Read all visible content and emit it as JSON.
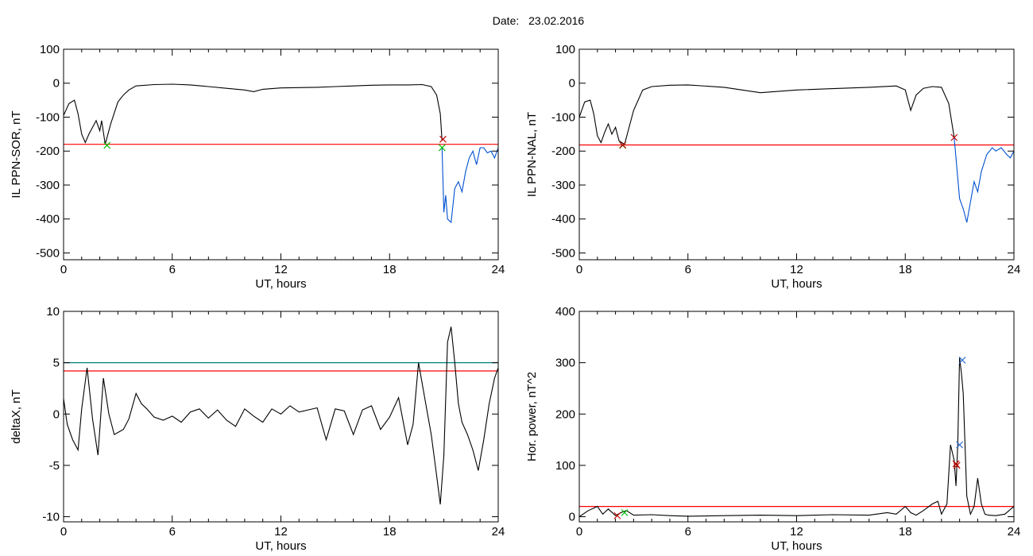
{
  "date_label": "Date:",
  "date_value": "23.02.2016",
  "colors": {
    "trace": "#000000",
    "threshold": "#ff0000",
    "threshold2": "#008080",
    "highlight": "#0050d0",
    "marker_red": "#c00000",
    "marker_green": "#00c000",
    "marker_blue": "#3070d0"
  },
  "chart_data": [
    {
      "type": "line",
      "id": "sor",
      "xlabel": "UT, hours",
      "ylabel": "IL PPN-SOR, nT",
      "xlim": [
        0,
        24
      ],
      "ylim": [
        -520,
        100
      ],
      "xticks": [
        0,
        6,
        12,
        18,
        24
      ],
      "yticks": [
        100,
        0,
        -100,
        -200,
        -300,
        -400,
        -500
      ],
      "series": [
        {
          "color": "black",
          "x": [
            0,
            0.3,
            0.6,
            0.8,
            1.0,
            1.2,
            1.4,
            1.6,
            1.8,
            2.0,
            2.1,
            2.3,
            2.6,
            3.0,
            3.3,
            3.6,
            4.0,
            5,
            6,
            7,
            8,
            9,
            10,
            10.5,
            11,
            12,
            13,
            14,
            15,
            16,
            17,
            18,
            19,
            19.8,
            20.3,
            20.6,
            20.8,
            20.9
          ],
          "y": [
            -95,
            -60,
            -50,
            -90,
            -150,
            -175,
            -150,
            -130,
            -110,
            -140,
            -110,
            -180,
            -120,
            -55,
            -35,
            -20,
            -8,
            -4,
            -3,
            -5,
            -10,
            -15,
            -20,
            -25,
            -18,
            -14,
            -13,
            -12,
            -10,
            -8,
            -6,
            -5,
            -5,
            -4,
            -10,
            -35,
            -90,
            -170
          ]
        },
        {
          "color": "blue",
          "x": [
            20.9,
            21.0,
            21.1,
            21.2,
            21.4,
            21.6,
            21.8,
            22.0,
            22.2,
            22.4,
            22.6,
            22.8,
            23.0,
            23.2,
            23.4,
            23.6,
            23.8,
            24
          ],
          "y": [
            -190,
            -380,
            -330,
            -400,
            -410,
            -310,
            -290,
            -320,
            -260,
            -220,
            -200,
            -240,
            -190,
            -190,
            -205,
            -200,
            -220,
            -190
          ]
        }
      ],
      "threshold": -180,
      "markers": [
        {
          "x": 2.4,
          "y": -183,
          "color": "green"
        },
        {
          "x": 20.95,
          "y": -165,
          "color": "red"
        },
        {
          "x": 20.9,
          "y": -190,
          "color": "green"
        }
      ]
    },
    {
      "type": "line",
      "id": "nal",
      "xlabel": "UT, hours",
      "ylabel": "IL PPN-NAL, nT",
      "xlim": [
        0,
        24
      ],
      "ylim": [
        -520,
        100
      ],
      "xticks": [
        0,
        6,
        12,
        18,
        24
      ],
      "yticks": [
        100,
        0,
        -100,
        -200,
        -300,
        -400,
        -500
      ],
      "series": [
        {
          "color": "black",
          "x": [
            0,
            0.3,
            0.6,
            0.8,
            1.0,
            1.2,
            1.4,
            1.6,
            1.8,
            2.0,
            2.2,
            2.5,
            3.0,
            3.5,
            4,
            5,
            6,
            8,
            10,
            12,
            14,
            16,
            17.5,
            18,
            18.3,
            18.6,
            19,
            19.5,
            20,
            20.4,
            20.7
          ],
          "y": [
            -100,
            -55,
            -50,
            -90,
            -155,
            -175,
            -145,
            -120,
            -150,
            -130,
            -170,
            -180,
            -80,
            -20,
            -10,
            -6,
            -5,
            -12,
            -28,
            -20,
            -16,
            -12,
            -8,
            -20,
            -80,
            -35,
            -15,
            -10,
            -12,
            -60,
            -160
          ]
        },
        {
          "color": "blue",
          "x": [
            20.7,
            21.0,
            21.2,
            21.4,
            21.6,
            21.8,
            22.0,
            22.2,
            22.5,
            22.8,
            23.0,
            23.3,
            23.6,
            23.8,
            24
          ],
          "y": [
            -160,
            -340,
            -370,
            -410,
            -350,
            -290,
            -320,
            -260,
            -210,
            -190,
            -200,
            -190,
            -210,
            -220,
            -200
          ]
        }
      ],
      "threshold": -182,
      "markers": [
        {
          "x": 2.4,
          "y": -183,
          "color": "green"
        },
        {
          "x": 2.4,
          "y": -182,
          "color": "red"
        },
        {
          "x": 20.7,
          "y": -160,
          "color": "red"
        }
      ]
    },
    {
      "type": "line",
      "id": "deltax",
      "xlabel": "UT, hours",
      "ylabel": "deltaX, nT",
      "xlim": [
        0,
        24
      ],
      "ylim": [
        -10.5,
        10
      ],
      "xticks": [
        0,
        6,
        12,
        18,
        24
      ],
      "yticks": [
        10,
        5,
        0,
        -5,
        -10
      ],
      "series": [
        {
          "color": "black",
          "x": [
            0,
            0.2,
            0.5,
            0.8,
            1.0,
            1.3,
            1.6,
            1.9,
            2.2,
            2.5,
            2.8,
            3.0,
            3.3,
            3.6,
            4.0,
            4.3,
            4.6,
            5.0,
            5.5,
            6,
            6.5,
            7,
            7.5,
            8,
            8.5,
            9,
            9.5,
            10,
            10.5,
            11,
            11.5,
            12,
            12.5,
            13,
            13.5,
            14,
            14.5,
            15,
            15.5,
            16,
            16.5,
            17,
            17.5,
            18,
            18.5,
            19,
            19.3,
            19.6,
            20,
            20.3,
            20.6,
            20.8,
            21.0,
            21.2,
            21.4,
            21.6,
            21.8,
            22,
            22.3,
            22.6,
            22.9,
            23.2,
            23.5,
            23.8,
            24
          ],
          "y": [
            1.5,
            -1.0,
            -2.5,
            -3.5,
            0.5,
            4.5,
            -0.5,
            -4.0,
            3.5,
            0.0,
            -2.0,
            -1.8,
            -1.5,
            -0.5,
            2.0,
            1.0,
            0.5,
            -0.3,
            -0.6,
            -0.2,
            -0.8,
            0.2,
            0.5,
            -0.4,
            0.4,
            -0.6,
            -1.2,
            0.5,
            -0.2,
            -0.8,
            0.5,
            0.0,
            0.8,
            0.2,
            0.4,
            0.6,
            -2.5,
            0.5,
            0.3,
            -2.0,
            0.4,
            0.8,
            -1.5,
            -0.3,
            1.6,
            -3.0,
            -1.0,
            5.0,
            1.0,
            -2.0,
            -6.0,
            -8.8,
            -4.0,
            7.0,
            8.5,
            5.0,
            1.0,
            -0.8,
            -2.0,
            -3.5,
            -5.5,
            -2.5,
            1.0,
            3.5,
            4.5
          ]
        }
      ],
      "thresholds": [
        {
          "value": 5.0,
          "color": "teal"
        },
        {
          "value": 4.2,
          "color": "red"
        }
      ],
      "markers": []
    },
    {
      "type": "line",
      "id": "power",
      "xlabel": "UT, hours",
      "ylabel": "Hor. power, nT^2",
      "xlim": [
        0,
        24
      ],
      "ylim": [
        -10,
        400
      ],
      "xticks": [
        0,
        6,
        12,
        18,
        24
      ],
      "yticks": [
        400,
        300,
        200,
        100,
        0
      ],
      "series": [
        {
          "color": "black",
          "x": [
            0,
            0.5,
            1.0,
            1.3,
            1.6,
            2.0,
            2.3,
            2.6,
            3,
            4,
            5,
            6,
            8,
            10,
            12,
            14,
            16,
            17,
            17.5,
            18.0,
            18.3,
            18.6,
            19,
            19.5,
            19.8,
            20.0,
            20.3,
            20.5,
            20.7,
            20.8,
            20.9,
            21.0,
            21.1,
            21.2,
            21.4,
            21.6,
            21.8,
            22.0,
            22.2,
            22.4,
            22.6,
            23,
            23.5,
            24
          ],
          "y": [
            0,
            12,
            20,
            5,
            15,
            2,
            8,
            12,
            3,
            4,
            2,
            1,
            2,
            3,
            2,
            4,
            3,
            8,
            5,
            20,
            8,
            3,
            12,
            25,
            30,
            5,
            25,
            140,
            110,
            60,
            140,
            310,
            280,
            240,
            40,
            5,
            20,
            75,
            25,
            5,
            3,
            2,
            5,
            20
          ]
        }
      ],
      "threshold": 20,
      "markers": [
        {
          "x": 2.1,
          "y": 2,
          "color": "red"
        },
        {
          "x": 2.5,
          "y": 8,
          "color": "green"
        },
        {
          "x": 20.8,
          "y": 103,
          "color": "red"
        },
        {
          "x": 20.85,
          "y": 100,
          "color": "red"
        },
        {
          "x": 21.0,
          "y": 140,
          "color": "blue"
        },
        {
          "x": 21.15,
          "y": 305,
          "color": "blue"
        }
      ]
    }
  ]
}
